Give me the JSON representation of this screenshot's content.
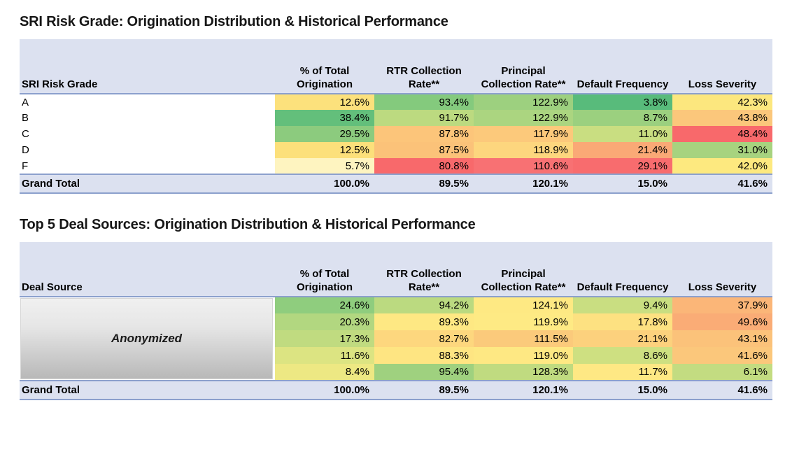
{
  "colors": {
    "header_bg": "#DCE1F0",
    "total_bg": "#DCE1F0",
    "rule": "#8CA0CD",
    "title_text": "#161616"
  },
  "tables": [
    {
      "title": "SRI Risk Grade: Origination Distribution & Historical Performance",
      "first_column_header": "SRI Risk Grade",
      "value_column_headers": [
        "% of Total Origination",
        "RTR Collection Rate**",
        "Principal Collection Rate**",
        "Default Frequency",
        "Loss Severity"
      ],
      "rows": [
        {
          "label": "A",
          "cells": [
            {
              "value": "12.6%",
              "bg": "#FCE17C"
            },
            {
              "value": "93.4%",
              "bg": "#84CA7D"
            },
            {
              "value": "122.9%",
              "bg": "#9DD07F"
            },
            {
              "value": "3.8%",
              "bg": "#58BB7B"
            },
            {
              "value": "42.3%",
              "bg": "#FCE77E"
            }
          ]
        },
        {
          "label": "B",
          "cells": [
            {
              "value": "38.4%",
              "bg": "#63BF7B"
            },
            {
              "value": "91.7%",
              "bg": "#BCDA80"
            },
            {
              "value": "122.9%",
              "bg": "#ABD580"
            },
            {
              "value": "8.7%",
              "bg": "#9BD07F"
            },
            {
              "value": "43.8%",
              "bg": "#FBC77B"
            }
          ]
        },
        {
          "label": "C",
          "cells": [
            {
              "value": "29.5%",
              "bg": "#8CCB7E"
            },
            {
              "value": "87.8%",
              "bg": "#FCC57A"
            },
            {
              "value": "117.9%",
              "bg": "#FCC97B"
            },
            {
              "value": "11.0%",
              "bg": "#C9DE81"
            },
            {
              "value": "48.4%",
              "bg": "#F8696B"
            }
          ]
        },
        {
          "label": "D",
          "cells": [
            {
              "value": "12.5%",
              "bg": "#FCE07B"
            },
            {
              "value": "87.5%",
              "bg": "#FBC279"
            },
            {
              "value": "118.9%",
              "bg": "#FDD67E"
            },
            {
              "value": "21.4%",
              "bg": "#FAA976"
            },
            {
              "value": "31.0%",
              "bg": "#A7D37F"
            }
          ]
        },
        {
          "label": "F",
          "cells": [
            {
              "value": "5.7%",
              "bg": "#FEF4C0"
            },
            {
              "value": "80.8%",
              "bg": "#F8696B"
            },
            {
              "value": "110.6%",
              "bg": "#F87173"
            },
            {
              "value": "29.1%",
              "bg": "#F86C6E"
            },
            {
              "value": "42.0%",
              "bg": "#FDE97F"
            }
          ]
        }
      ],
      "grand_total": {
        "label": "Grand Total",
        "values": [
          "100.0%",
          "89.5%",
          "120.1%",
          "15.0%",
          "41.6%"
        ]
      }
    },
    {
      "title": "Top 5 Deal Sources: Origination Distribution & Historical Performance",
      "first_column_header": "Deal Source",
      "anonymized_label": "Anonymized",
      "value_column_headers": [
        "% of Total Origination",
        "RTR Collection Rate**",
        "Principal Collection Rate**",
        "Default Frequency",
        "Loss Severity"
      ],
      "rows": [
        {
          "label": "",
          "cells": [
            {
              "value": "24.6%",
              "bg": "#8FCD7E"
            },
            {
              "value": "94.2%",
              "bg": "#BBDA80"
            },
            {
              "value": "124.1%",
              "bg": "#FEE983"
            },
            {
              "value": "9.4%",
              "bg": "#C9DE81"
            },
            {
              "value": "37.9%",
              "bg": "#FBB678"
            }
          ]
        },
        {
          "label": "",
          "cells": [
            {
              "value": "20.3%",
              "bg": "#B2D780"
            },
            {
              "value": "89.3%",
              "bg": "#FEE883"
            },
            {
              "value": "119.9%",
              "bg": "#FEEA84"
            },
            {
              "value": "17.8%",
              "bg": "#FDE181"
            },
            {
              "value": "49.6%",
              "bg": "#FAAC76"
            }
          ]
        },
        {
          "label": "",
          "cells": [
            {
              "value": "17.3%",
              "bg": "#C0DB80"
            },
            {
              "value": "82.7%",
              "bg": "#FDD77E"
            },
            {
              "value": "111.5%",
              "bg": "#FBCA7B"
            },
            {
              "value": "21.1%",
              "bg": "#FCD17D"
            },
            {
              "value": "43.1%",
              "bg": "#FBC27A"
            }
          ]
        },
        {
          "label": "",
          "cells": [
            {
              "value": "11.6%",
              "bg": "#DCE482"
            },
            {
              "value": "88.3%",
              "bg": "#FEE582"
            },
            {
              "value": "119.0%",
              "bg": "#FEE883"
            },
            {
              "value": "8.6%",
              "bg": "#CEE081"
            },
            {
              "value": "41.6%",
              "bg": "#FBC77B"
            }
          ]
        },
        {
          "label": "",
          "cells": [
            {
              "value": "8.4%",
              "bg": "#EDE883"
            },
            {
              "value": "95.4%",
              "bg": "#9FD17F"
            },
            {
              "value": "128.3%",
              "bg": "#C0DB80"
            },
            {
              "value": "11.7%",
              "bg": "#FEE884"
            },
            {
              "value": "6.1%",
              "bg": "#C3DC81"
            }
          ]
        }
      ],
      "grand_total": {
        "label": "Grand Total",
        "values": [
          "100.0%",
          "89.5%",
          "120.1%",
          "15.0%",
          "41.6%"
        ]
      }
    }
  ]
}
